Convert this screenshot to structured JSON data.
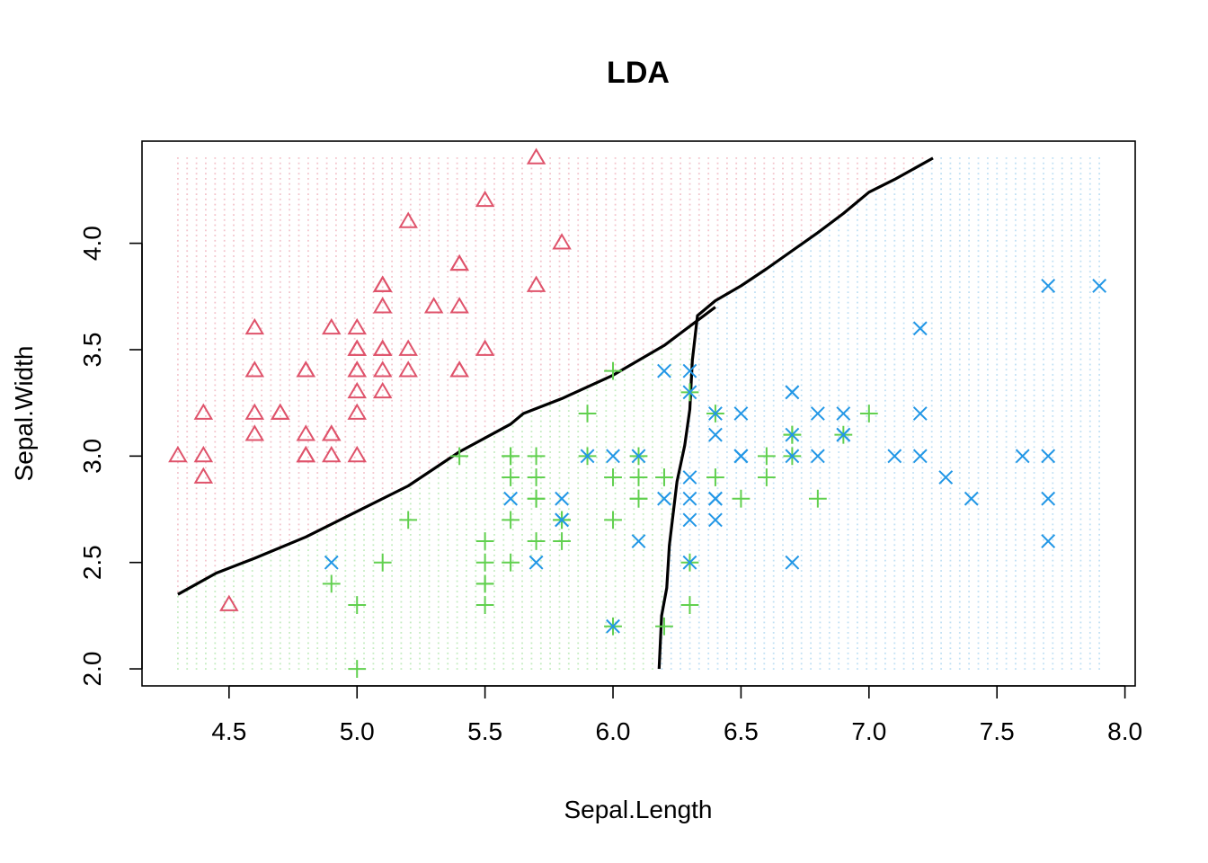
{
  "chart_data": {
    "type": "scatter",
    "title": "LDA",
    "xlabel": "Sepal.Length",
    "ylabel": "Sepal.Width",
    "xlim": [
      4.16,
      8.04
    ],
    "ylim": [
      1.92,
      4.48
    ],
    "xticks": [
      "4.5",
      "5.0",
      "5.5",
      "6.0",
      "6.5",
      "7.0",
      "7.5",
      "8.0"
    ],
    "yticks": [
      "2.0",
      "2.5",
      "3.0",
      "3.5",
      "4.0"
    ],
    "grid": false,
    "legend": "none",
    "region_grid": {
      "x_range": [
        4.3,
        7.9
      ],
      "y_range": [
        2.0,
        4.4
      ],
      "x_steps": 100,
      "y_steps": 100,
      "colors": {
        "setosa": "#f3c4cc",
        "versicolor": "#c4ecc0",
        "virginica": "#c0e0f4"
      }
    },
    "boundaries": [
      {
        "points": [
          [
            4.3,
            2.35
          ],
          [
            4.45,
            2.45
          ],
          [
            4.6,
            2.52
          ],
          [
            4.8,
            2.62
          ],
          [
            5.0,
            2.74
          ],
          [
            5.2,
            2.86
          ],
          [
            5.4,
            3.02
          ],
          [
            5.6,
            3.15
          ],
          [
            5.65,
            3.2
          ],
          [
            5.8,
            3.27
          ],
          [
            6.0,
            3.38
          ],
          [
            6.2,
            3.52
          ],
          [
            6.4,
            3.7
          ]
        ]
      },
      {
        "points": [
          [
            6.18,
            2.0
          ],
          [
            6.19,
            2.25
          ],
          [
            6.21,
            2.38
          ],
          [
            6.22,
            2.58
          ],
          [
            6.25,
            2.88
          ],
          [
            6.28,
            3.05
          ],
          [
            6.3,
            3.22
          ],
          [
            6.31,
            3.45
          ],
          [
            6.33,
            3.66
          ],
          [
            6.4,
            3.73
          ],
          [
            6.5,
            3.8
          ],
          [
            6.6,
            3.88
          ],
          [
            6.8,
            4.05
          ],
          [
            6.9,
            4.14
          ],
          [
            7.0,
            4.24
          ],
          [
            7.1,
            4.3
          ],
          [
            7.25,
            4.4
          ]
        ]
      }
    ],
    "series": [
      {
        "name": "",
        "marker": "triangle",
        "color": "#df536b",
        "points": [
          [
            5.1,
            3.5
          ],
          [
            4.9,
            3.0
          ],
          [
            4.7,
            3.2
          ],
          [
            4.6,
            3.1
          ],
          [
            5.0,
            3.6
          ],
          [
            5.4,
            3.9
          ],
          [
            4.6,
            3.4
          ],
          [
            5.0,
            3.4
          ],
          [
            4.4,
            2.9
          ],
          [
            4.9,
            3.1
          ],
          [
            5.4,
            3.7
          ],
          [
            4.8,
            3.4
          ],
          [
            4.8,
            3.0
          ],
          [
            4.3,
            3.0
          ],
          [
            5.8,
            4.0
          ],
          [
            5.7,
            4.4
          ],
          [
            5.4,
            3.9
          ],
          [
            5.1,
            3.5
          ],
          [
            5.7,
            3.8
          ],
          [
            5.1,
            3.8
          ],
          [
            5.4,
            3.4
          ],
          [
            5.1,
            3.7
          ],
          [
            4.6,
            3.6
          ],
          [
            5.1,
            3.3
          ],
          [
            4.8,
            3.4
          ],
          [
            5.0,
            3.0
          ],
          [
            5.0,
            3.4
          ],
          [
            5.2,
            3.5
          ],
          [
            5.2,
            3.4
          ],
          [
            4.7,
            3.2
          ],
          [
            4.8,
            3.1
          ],
          [
            5.4,
            3.4
          ],
          [
            5.2,
            4.1
          ],
          [
            5.5,
            4.2
          ],
          [
            4.9,
            3.1
          ],
          [
            5.0,
            3.2
          ],
          [
            5.5,
            3.5
          ],
          [
            4.9,
            3.6
          ],
          [
            4.4,
            3.0
          ],
          [
            5.1,
            3.4
          ],
          [
            5.0,
            3.5
          ],
          [
            4.5,
            2.3
          ],
          [
            4.4,
            3.2
          ],
          [
            5.0,
            3.5
          ],
          [
            5.1,
            3.8
          ],
          [
            4.8,
            3.0
          ],
          [
            5.1,
            3.8
          ],
          [
            4.6,
            3.2
          ],
          [
            5.3,
            3.7
          ],
          [
            5.0,
            3.3
          ]
        ]
      },
      {
        "name": "",
        "marker": "plus",
        "color": "#61d04f",
        "points": [
          [
            7.0,
            3.2
          ],
          [
            6.4,
            3.2
          ],
          [
            6.9,
            3.1
          ],
          [
            5.5,
            2.3
          ],
          [
            6.5,
            2.8
          ],
          [
            5.7,
            2.8
          ],
          [
            6.3,
            3.3
          ],
          [
            4.9,
            2.4
          ],
          [
            6.6,
            2.9
          ],
          [
            5.2,
            2.7
          ],
          [
            5.0,
            2.0
          ],
          [
            5.9,
            3.0
          ],
          [
            6.0,
            2.2
          ],
          [
            6.1,
            2.9
          ],
          [
            5.6,
            2.9
          ],
          [
            6.7,
            3.1
          ],
          [
            5.6,
            3.0
          ],
          [
            5.8,
            2.7
          ],
          [
            6.2,
            2.2
          ],
          [
            5.6,
            2.5
          ],
          [
            5.9,
            3.2
          ],
          [
            6.1,
            2.8
          ],
          [
            6.3,
            2.5
          ],
          [
            6.1,
            2.8
          ],
          [
            6.4,
            2.9
          ],
          [
            6.6,
            3.0
          ],
          [
            6.8,
            2.8
          ],
          [
            6.7,
            3.0
          ],
          [
            6.0,
            2.9
          ],
          [
            5.7,
            2.6
          ],
          [
            5.5,
            2.4
          ],
          [
            5.5,
            2.4
          ],
          [
            5.8,
            2.7
          ],
          [
            6.0,
            2.7
          ],
          [
            5.4,
            3.0
          ],
          [
            6.0,
            3.4
          ],
          [
            6.7,
            3.1
          ],
          [
            6.3,
            2.3
          ],
          [
            5.6,
            3.0
          ],
          [
            5.5,
            2.5
          ],
          [
            5.5,
            2.6
          ],
          [
            6.1,
            3.0
          ],
          [
            5.8,
            2.6
          ],
          [
            5.0,
            2.3
          ],
          [
            5.6,
            2.7
          ],
          [
            5.7,
            3.0
          ],
          [
            5.7,
            2.9
          ],
          [
            6.2,
            2.9
          ],
          [
            5.1,
            2.5
          ],
          [
            5.7,
            2.8
          ]
        ]
      },
      {
        "name": "",
        "marker": "cross",
        "color": "#2297e6",
        "points": [
          [
            6.3,
            3.3
          ],
          [
            5.8,
            2.7
          ],
          [
            7.1,
            3.0
          ],
          [
            6.3,
            2.9
          ],
          [
            6.5,
            3.0
          ],
          [
            7.6,
            3.0
          ],
          [
            4.9,
            2.5
          ],
          [
            7.3,
            2.9
          ],
          [
            6.7,
            2.5
          ],
          [
            7.2,
            3.6
          ],
          [
            6.5,
            3.2
          ],
          [
            6.4,
            2.7
          ],
          [
            6.8,
            3.0
          ],
          [
            5.7,
            2.5
          ],
          [
            5.8,
            2.8
          ],
          [
            6.4,
            3.2
          ],
          [
            6.5,
            3.0
          ],
          [
            7.7,
            3.8
          ],
          [
            7.7,
            2.6
          ],
          [
            6.0,
            2.2
          ],
          [
            6.9,
            3.2
          ],
          [
            5.6,
            2.8
          ],
          [
            7.7,
            2.8
          ],
          [
            6.3,
            2.7
          ],
          [
            6.7,
            3.3
          ],
          [
            7.2,
            3.2
          ],
          [
            6.2,
            2.8
          ],
          [
            6.1,
            3.0
          ],
          [
            6.4,
            2.8
          ],
          [
            7.2,
            3.0
          ],
          [
            7.4,
            2.8
          ],
          [
            7.9,
            3.8
          ],
          [
            6.4,
            2.8
          ],
          [
            6.3,
            2.8
          ],
          [
            6.1,
            2.6
          ],
          [
            7.7,
            3.0
          ],
          [
            6.3,
            3.4
          ],
          [
            6.4,
            3.1
          ],
          [
            6.0,
            3.0
          ],
          [
            6.9,
            3.1
          ],
          [
            6.7,
            3.1
          ],
          [
            6.9,
            3.1
          ],
          [
            5.8,
            2.7
          ],
          [
            6.8,
            3.2
          ],
          [
            6.7,
            3.3
          ],
          [
            6.7,
            3.0
          ],
          [
            6.3,
            2.5
          ],
          [
            6.5,
            3.0
          ],
          [
            6.2,
            3.4
          ],
          [
            5.9,
            3.0
          ]
        ]
      }
    ]
  }
}
